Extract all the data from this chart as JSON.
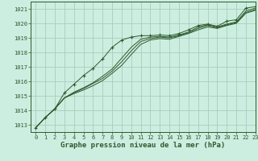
{
  "title": "Graphe pression niveau de la mer (hPa)",
  "background_color": "#cceee0",
  "grid_color": "#aaccbb",
  "line_color": "#2d5a2d",
  "xlim": [
    -0.5,
    23
  ],
  "ylim": [
    1012.5,
    1021.5
  ],
  "yticks": [
    1013,
    1014,
    1015,
    1016,
    1017,
    1018,
    1019,
    1020,
    1021
  ],
  "xticks": [
    0,
    1,
    2,
    3,
    4,
    5,
    6,
    7,
    8,
    9,
    10,
    11,
    12,
    13,
    14,
    15,
    16,
    17,
    18,
    19,
    20,
    21,
    22,
    23
  ],
  "series": {
    "line_upper": [
      1012.8,
      1013.5,
      1014.1,
      1015.2,
      1015.8,
      1016.4,
      1016.9,
      1017.55,
      1018.35,
      1018.85,
      1019.05,
      1019.15,
      1019.15,
      1019.2,
      1019.15,
      1019.3,
      1019.55,
      1019.85,
      1019.95,
      1019.8,
      1020.15,
      1020.25,
      1021.05,
      1021.15
    ],
    "line_mid1": [
      1012.8,
      1013.5,
      1014.1,
      1014.85,
      1015.25,
      1015.55,
      1015.9,
      1016.35,
      1016.85,
      1017.6,
      1018.35,
      1018.9,
      1019.05,
      1019.1,
      1019.05,
      1019.2,
      1019.4,
      1019.75,
      1019.9,
      1019.75,
      1019.95,
      1020.1,
      1020.85,
      1021.05
    ],
    "line_mid2": [
      1012.8,
      1013.5,
      1014.1,
      1014.85,
      1015.2,
      1015.5,
      1015.85,
      1016.2,
      1016.7,
      1017.35,
      1018.1,
      1018.75,
      1018.95,
      1019.05,
      1019.0,
      1019.15,
      1019.35,
      1019.65,
      1019.85,
      1019.7,
      1019.9,
      1020.05,
      1020.75,
      1020.95
    ],
    "line_lower": [
      1012.8,
      1013.5,
      1014.1,
      1014.85,
      1015.15,
      1015.4,
      1015.7,
      1016.05,
      1016.55,
      1017.1,
      1017.85,
      1018.55,
      1018.85,
      1018.95,
      1018.9,
      1019.1,
      1019.3,
      1019.55,
      1019.75,
      1019.65,
      1019.85,
      1020.0,
      1020.7,
      1020.9
    ]
  },
  "marker_series": [
    1012.8,
    1013.5,
    1014.1,
    1015.2,
    1015.8,
    1016.4,
    1016.9,
    1017.55,
    1018.35,
    1018.85,
    1019.05,
    1019.15,
    1019.15,
    1019.2,
    1019.15,
    1019.3,
    1019.55,
    1019.85,
    1019.95,
    1019.8,
    1020.15,
    1020.25,
    1021.05,
    1021.15
  ],
  "font_color": "#2d5a2d",
  "title_fontsize": 6.5,
  "tick_fontsize": 5.0
}
